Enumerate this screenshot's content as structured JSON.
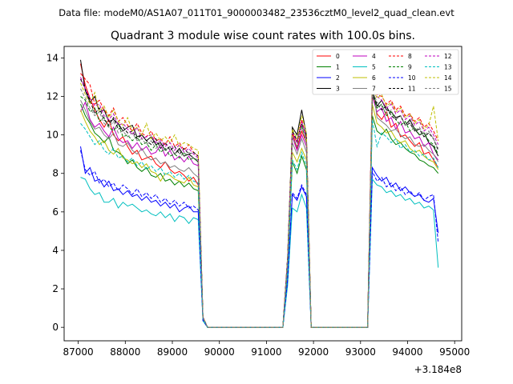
{
  "chart_data": {
    "type": "line",
    "suptitle": "Data file: modeM0/AS1A07_011T01_9000003482_23536cztM0_level2_quad_clean.evt",
    "title": "Quadrant 3 module wise count rates with 100.0s bins.",
    "xlabel": "",
    "ylabel": "",
    "offset_text": "+3.184e8",
    "xlim": [
      86700,
      95150
    ],
    "ylim": [
      -0.7,
      14.6
    ],
    "x_ticks": [
      87000,
      88000,
      89000,
      90000,
      91000,
      92000,
      93000,
      94000,
      95000
    ],
    "y_ticks": [
      0,
      2,
      4,
      6,
      8,
      10,
      12,
      14
    ],
    "x_tick_labels": [
      "87000",
      "88000",
      "89000",
      "90000",
      "91000",
      "92000",
      "93000",
      "94000",
      "95000"
    ],
    "y_tick_labels": [
      "0",
      "2",
      "4",
      "6",
      "8",
      "10",
      "12",
      "14"
    ],
    "grid": false,
    "legend_position": "top-right",
    "bins": {
      "segment_1": [
        87050,
        89550
      ],
      "gap_1_start": 89650,
      "drop_1": [
        89650,
        89750
      ],
      "gap_1": [
        89750,
        91350
      ],
      "segment_2_rise": [
        91350,
        91450
      ],
      "segment_2": [
        91550,
        91850
      ],
      "drop_2": [
        91950
      ],
      "gap_2": [
        91950,
        93150
      ],
      "segment_3_rise": [
        93150,
        93250
      ],
      "segment_3": [
        93350,
        94750
      ]
    },
    "series": [
      {
        "name": "0",
        "color": "#ff0000",
        "dash": "solid",
        "values": [
          13.7,
          12.6,
          11.9,
          11.3,
          10.8,
          10.4,
          10.8,
          10.0,
          9.7,
          9.9,
          9.4,
          9.0,
          9.2,
          8.7,
          8.8,
          8.9,
          8.5,
          8.3,
          8.6,
          8.2,
          8.0,
          8.1,
          7.9,
          7.6,
          7.8,
          7.4
        ],
        "peak2": [
          10.1,
          9.3,
          10.2,
          9.6
        ],
        "seg3": [
          12.4,
          11.1,
          10.8,
          11.2,
          10.4,
          10.6,
          9.9,
          10.0,
          9.7,
          9.4,
          9.6,
          9.0,
          9.1,
          8.7,
          8.3
        ]
      },
      {
        "name": "1",
        "color": "#008000",
        "dash": "solid",
        "values": [
          11.6,
          11.0,
          10.6,
          10.1,
          9.9,
          9.6,
          9.9,
          9.2,
          9.1,
          8.9,
          8.5,
          8.7,
          8.3,
          8.1,
          8.3,
          7.9,
          7.8,
          8.0,
          7.6,
          7.7,
          7.4,
          7.6,
          7.3,
          7.5,
          7.2,
          7.1
        ],
        "peak2": [
          8.6,
          8.0,
          8.9,
          8.2
        ],
        "seg3": [
          11.0,
          10.2,
          10.0,
          10.3,
          9.8,
          9.5,
          9.6,
          9.3,
          9.1,
          9.0,
          8.7,
          8.6,
          8.4,
          8.3,
          8.0
        ]
      },
      {
        "name": "2",
        "color": "#0000ff",
        "dash": "solid",
        "values": [
          9.4,
          8.0,
          8.3,
          7.6,
          7.7,
          7.3,
          7.6,
          7.1,
          7.2,
          6.9,
          7.1,
          6.8,
          6.9,
          6.6,
          6.8,
          6.5,
          6.6,
          6.3,
          6.5,
          6.2,
          6.4,
          6.0,
          6.2,
          6.3,
          6.0,
          6.0
        ],
        "peak2": [
          6.9,
          6.6,
          7.3,
          6.8
        ],
        "seg3": [
          8.3,
          7.9,
          7.6,
          7.8,
          7.3,
          7.5,
          7.1,
          7.3,
          7.0,
          6.8,
          6.9,
          6.6,
          6.5,
          6.7,
          4.9
        ]
      },
      {
        "name": "3",
        "color": "#000000",
        "dash": "solid",
        "values": [
          13.9,
          12.3,
          11.7,
          12.0,
          11.2,
          11.3,
          10.7,
          10.8,
          10.6,
          10.2,
          10.4,
          10.5,
          9.9,
          10.0,
          9.7,
          9.9,
          9.5,
          9.6,
          9.2,
          9.4,
          9.0,
          9.3,
          8.9,
          9.0,
          8.8,
          8.6
        ],
        "peak2": [
          10.4,
          10.0,
          11.3,
          10.0
        ],
        "seg3": [
          12.2,
          11.5,
          11.8,
          11.3,
          11.2,
          10.9,
          11.0,
          10.5,
          10.8,
          10.3,
          10.0,
          10.1,
          9.6,
          9.4,
          8.9
        ]
      },
      {
        "name": "4",
        "color": "#bf00bf",
        "dash": "solid",
        "values": [
          11.2,
          11.7,
          10.8,
          10.4,
          10.6,
          10.2,
          9.9,
          10.4,
          9.8,
          9.6,
          9.7,
          9.3,
          9.6,
          9.2,
          9.4,
          9.0,
          9.1,
          9.5,
          8.9,
          9.2,
          8.7,
          8.9,
          8.6,
          8.9,
          8.5,
          8.4
        ],
        "peak2": [
          9.9,
          9.2,
          10.0,
          9.4
        ],
        "seg3": [
          12.0,
          11.2,
          11.4,
          10.7,
          10.9,
          10.3,
          10.7,
          10.1,
          10.2,
          9.8,
          9.9,
          9.4,
          9.6,
          9.0,
          8.7
        ]
      },
      {
        "name": "5",
        "color": "#00bfbf",
        "dash": "solid",
        "values": [
          7.8,
          7.7,
          7.2,
          6.9,
          7.0,
          6.5,
          6.5,
          6.7,
          6.2,
          6.5,
          6.3,
          6.4,
          6.2,
          6.0,
          6.1,
          5.9,
          5.8,
          6.0,
          5.7,
          5.9,
          5.5,
          5.8,
          5.7,
          5.4,
          5.7,
          5.6
        ],
        "peak2": [
          6.2,
          6.0,
          6.9,
          6.2
        ],
        "seg3": [
          7.7,
          7.4,
          7.3,
          7.0,
          7.1,
          6.8,
          6.9,
          6.6,
          6.7,
          6.4,
          6.5,
          6.2,
          6.3,
          6.1,
          3.1
        ]
      },
      {
        "name": "6",
        "color": "#bfbf00",
        "dash": "solid",
        "values": [
          11.3,
          10.7,
          10.2,
          9.9,
          9.5,
          9.7,
          9.2,
          9.0,
          9.3,
          8.8,
          8.7,
          8.5,
          8.6,
          8.3,
          8.5,
          8.1,
          8.0,
          7.6,
          8.0,
          7.9,
          7.7,
          7.6,
          7.5,
          7.8,
          7.4,
          7.3
        ],
        "peak2": [
          9.1,
          8.6,
          9.3,
          8.7
        ],
        "seg3": [
          11.6,
          10.6,
          10.4,
          10.1,
          10.2,
          9.8,
          9.6,
          9.7,
          9.3,
          9.1,
          9.2,
          8.9,
          8.7,
          8.6,
          8.2
        ]
      },
      {
        "name": "7",
        "color": "#808080",
        "dash": "solid",
        "values": [
          11.8,
          11.3,
          10.7,
          10.3,
          10.4,
          10.0,
          9.8,
          10.1,
          9.5,
          9.4,
          9.6,
          9.2,
          9.0,
          9.3,
          8.9,
          8.7,
          8.8,
          8.5,
          8.6,
          8.3,
          8.4,
          8.2,
          8.1,
          8.3,
          8.0,
          7.8
        ],
        "peak2": [
          9.6,
          9.0,
          9.8,
          9.1
        ],
        "seg3": [
          12.9,
          10.9,
          10.7,
          10.5,
          10.2,
          10.3,
          10.0,
          9.8,
          9.9,
          9.5,
          9.4,
          9.5,
          9.2,
          9.0,
          8.6
        ]
      },
      {
        "name": "8",
        "color": "#ff0000",
        "dash": "dashed",
        "values": [
          13.2,
          12.9,
          12.6,
          11.6,
          11.8,
          11.3,
          11.0,
          11.4,
          10.7,
          10.9,
          10.5,
          10.2,
          10.6,
          10.1,
          9.9,
          10.2,
          9.7,
          9.8,
          9.5,
          9.9,
          9.4,
          9.6,
          9.2,
          9.5,
          9.1,
          8.9
        ],
        "peak2": [
          10.1,
          9.6,
          10.8,
          9.8
        ],
        "seg3": [
          12.7,
          12.1,
          12.0,
          11.6,
          11.8,
          11.3,
          11.5,
          11.0,
          11.1,
          10.7,
          10.9,
          10.4,
          10.6,
          10.2,
          9.7
        ]
      },
      {
        "name": "9",
        "color": "#008000",
        "dash": "dashed",
        "values": [
          12.0,
          11.8,
          11.2,
          11.4,
          10.7,
          10.9,
          10.4,
          10.2,
          10.6,
          9.9,
          10.0,
          9.7,
          9.9,
          9.5,
          9.6,
          9.2,
          9.5,
          9.1,
          9.3,
          8.9,
          9.0,
          8.8,
          9.1,
          8.7,
          8.8,
          8.6
        ],
        "peak2": [
          9.9,
          9.4,
          10.5,
          9.6
        ],
        "seg3": [
          12.1,
          11.4,
          11.6,
          11.0,
          11.2,
          10.8,
          10.5,
          10.7,
          10.2,
          10.4,
          10.0,
          10.1,
          9.7,
          9.5,
          9.0
        ]
      },
      {
        "name": "10",
        "color": "#0000ff",
        "dash": "dashed",
        "values": [
          9.2,
          8.2,
          7.9,
          8.1,
          7.5,
          7.7,
          7.3,
          7.5,
          7.1,
          7.4,
          7.2,
          6.9,
          7.2,
          6.8,
          7.0,
          6.7,
          6.9,
          6.5,
          6.7,
          6.4,
          6.6,
          6.3,
          6.5,
          6.2,
          6.3,
          6.1
        ],
        "peak2": [
          7.0,
          6.7,
          7.4,
          6.9
        ],
        "seg3": [
          8.1,
          7.6,
          7.8,
          7.3,
          7.5,
          7.1,
          7.3,
          6.9,
          7.1,
          6.8,
          7.0,
          6.6,
          6.8,
          6.9,
          4.4
        ]
      },
      {
        "name": "11",
        "color": "#000000",
        "dash": "dashed",
        "values": [
          12.9,
          12.4,
          11.8,
          11.1,
          11.4,
          10.8,
          10.5,
          10.9,
          10.3,
          10.4,
          10.1,
          10.2,
          9.8,
          10.0,
          9.7,
          9.5,
          9.8,
          9.3,
          9.6,
          9.2,
          9.4,
          9.0,
          9.3,
          9.0,
          9.1,
          8.9
        ],
        "peak2": [
          10.2,
          9.7,
          10.6,
          9.9
        ],
        "seg3": [
          12.2,
          11.6,
          11.3,
          11.5,
          11.0,
          10.8,
          11.0,
          10.5,
          10.6,
          10.2,
          10.3,
          9.9,
          10.1,
          9.8,
          9.2
        ]
      },
      {
        "name": "12",
        "color": "#bf00bf",
        "dash": "dashed",
        "values": [
          13.0,
          12.4,
          11.9,
          11.5,
          11.6,
          11.0,
          10.8,
          11.1,
          10.5,
          10.6,
          10.3,
          10.0,
          10.4,
          9.8,
          9.9,
          10.0,
          9.6,
          9.7,
          9.4,
          9.6,
          9.2,
          9.5,
          9.1,
          9.3,
          9.0,
          8.8
        ],
        "peak2": [
          10.1,
          9.6,
          10.7,
          9.8
        ],
        "seg3": [
          12.6,
          12.0,
          11.8,
          11.4,
          11.6,
          11.1,
          11.3,
          10.8,
          11.0,
          10.5,
          10.7,
          10.2,
          10.4,
          10.0,
          9.5
        ]
      },
      {
        "name": "13",
        "color": "#00bfbf",
        "dash": "dashed",
        "values": [
          10.6,
          10.3,
          9.9,
          9.5,
          9.7,
          9.2,
          9.0,
          9.3,
          8.8,
          8.9,
          8.6,
          8.8,
          8.4,
          8.6,
          8.2,
          8.4,
          8.1,
          8.3,
          7.9,
          8.1,
          7.8,
          8.0,
          7.7,
          7.9,
          7.6,
          7.5
        ],
        "peak2": [
          8.7,
          8.2,
          9.1,
          8.4
        ],
        "seg3": [
          10.8,
          9.4,
          10.1,
          9.9,
          9.6,
          9.8,
          9.3,
          9.5,
          9.1,
          9.2,
          8.9,
          9.0,
          8.7,
          8.8,
          8.3
        ]
      },
      {
        "name": "14",
        "color": "#bfbf00",
        "dash": "dashed",
        "values": [
          12.7,
          12.1,
          11.6,
          12.2,
          11.2,
          11.5,
          10.9,
          11.3,
          10.7,
          10.5,
          10.9,
          10.2,
          10.4,
          10.0,
          10.6,
          9.8,
          10.1,
          9.7,
          9.9,
          9.6,
          10.0,
          9.4,
          9.6,
          9.5,
          9.3,
          9.2
        ],
        "peak2": [
          10.3,
          9.8,
          11.0,
          10.1
        ],
        "seg3": [
          12.5,
          11.9,
          12.1,
          11.5,
          11.7,
          11.2,
          11.4,
          10.9,
          11.1,
          10.6,
          10.8,
          10.3,
          10.5,
          11.5,
          9.7
        ]
      },
      {
        "name": "15",
        "color": "#808080",
        "dash": "dashed",
        "values": [
          12.4,
          11.9,
          11.4,
          11.0,
          11.2,
          10.6,
          10.4,
          10.7,
          10.1,
          10.2,
          9.9,
          10.1,
          9.7,
          9.8,
          9.5,
          9.7,
          9.3,
          9.5,
          9.2,
          9.4,
          9.0,
          9.2,
          8.9,
          9.1,
          8.8,
          8.7
        ],
        "peak2": [
          9.9,
          9.4,
          10.4,
          9.6
        ],
        "seg3": [
          12.3,
          11.7,
          11.5,
          11.1,
          11.3,
          10.8,
          11.0,
          10.5,
          10.7,
          10.2,
          10.4,
          10.0,
          10.2,
          9.8,
          9.3
        ]
      }
    ]
  }
}
